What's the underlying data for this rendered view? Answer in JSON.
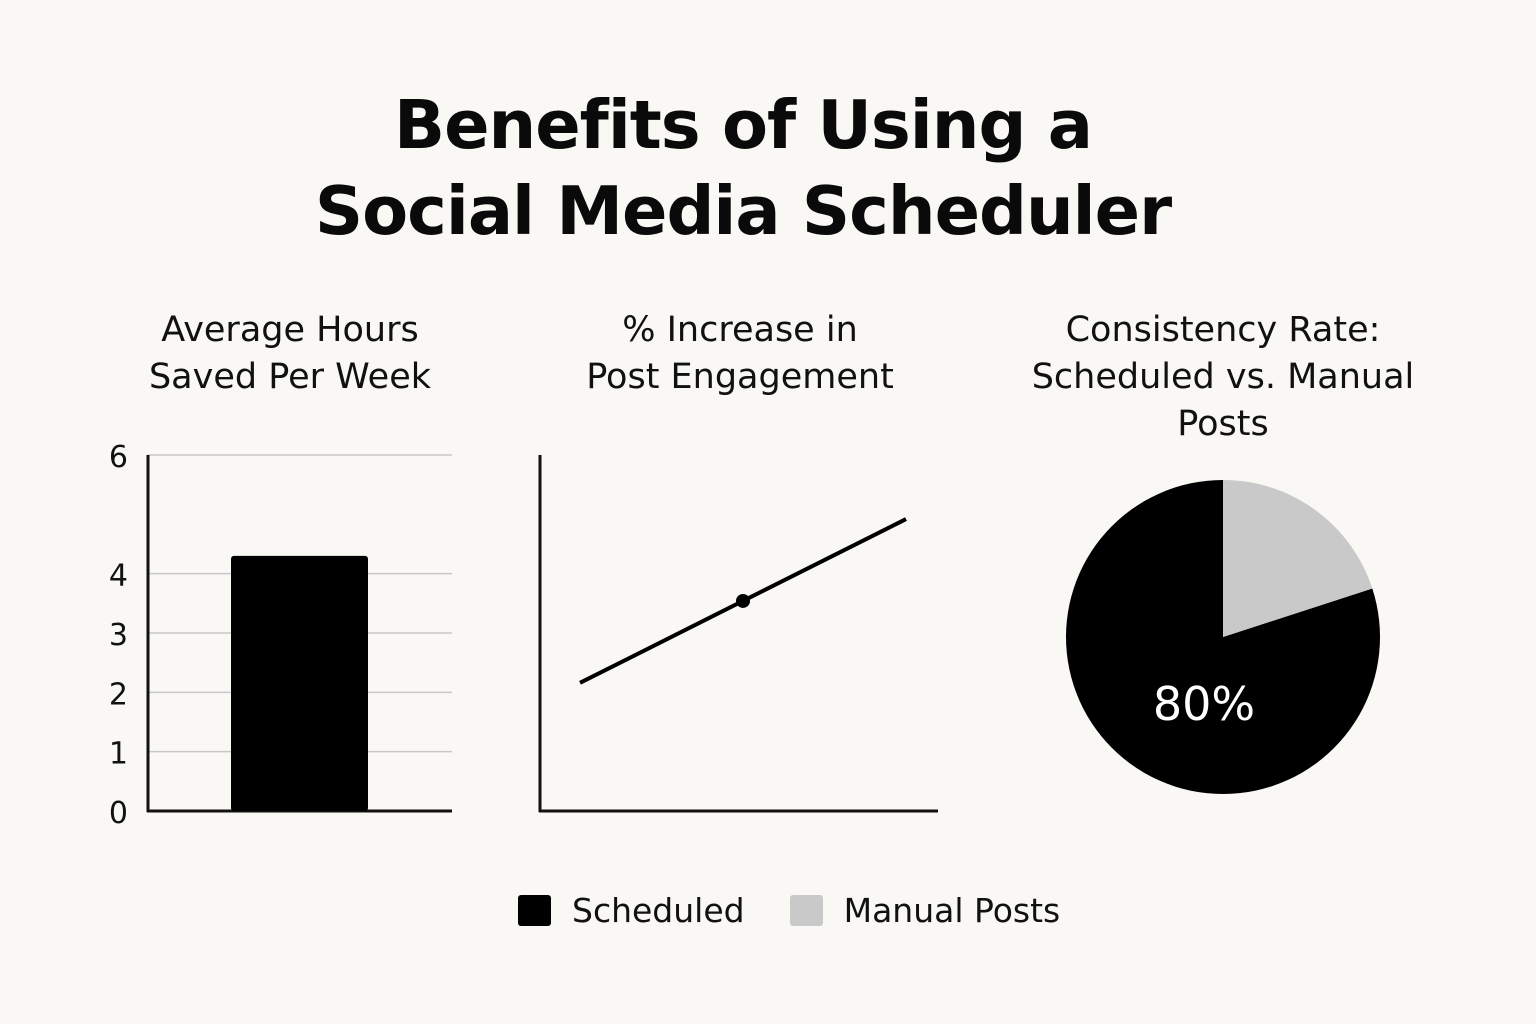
{
  "title": {
    "line1": "Benefits of Using a",
    "line2": "Social Media Scheduler"
  },
  "colors": {
    "background": "#f9f8f4",
    "scheduled": "#000000",
    "manual": "#c9c9c9",
    "grid": "#c8c8c8",
    "axis": "#111111"
  },
  "legend": {
    "scheduled": "Scheduled",
    "manual": "Manual Posts"
  },
  "chart_data": [
    {
      "type": "bar",
      "title_lines": [
        "Average Hours",
        "Saved Per Week"
      ],
      "categories": [
        ""
      ],
      "values": [
        4.3
      ],
      "ylim": [
        0,
        6
      ],
      "yticks": [
        0,
        1,
        2,
        3,
        4,
        6
      ],
      "grid": true,
      "xlabel": "",
      "ylabel": ""
    },
    {
      "type": "line",
      "title_lines": [
        "% Increase in",
        "Post Engagement"
      ],
      "x": [
        0,
        1
      ],
      "y": [
        0.36,
        0.82
      ],
      "markers_at": [
        0.5
      ],
      "ylim": [
        0,
        1
      ],
      "grid": false,
      "xlabel": "",
      "ylabel": ""
    },
    {
      "type": "pie",
      "title_lines": [
        "Consistency Rate:",
        "Scheduled vs. Manual",
        "Posts"
      ],
      "slices": [
        {
          "name": "Scheduled",
          "value": 80,
          "label": "80%"
        },
        {
          "name": "Manual Posts",
          "value": 20,
          "label": ""
        }
      ]
    }
  ]
}
